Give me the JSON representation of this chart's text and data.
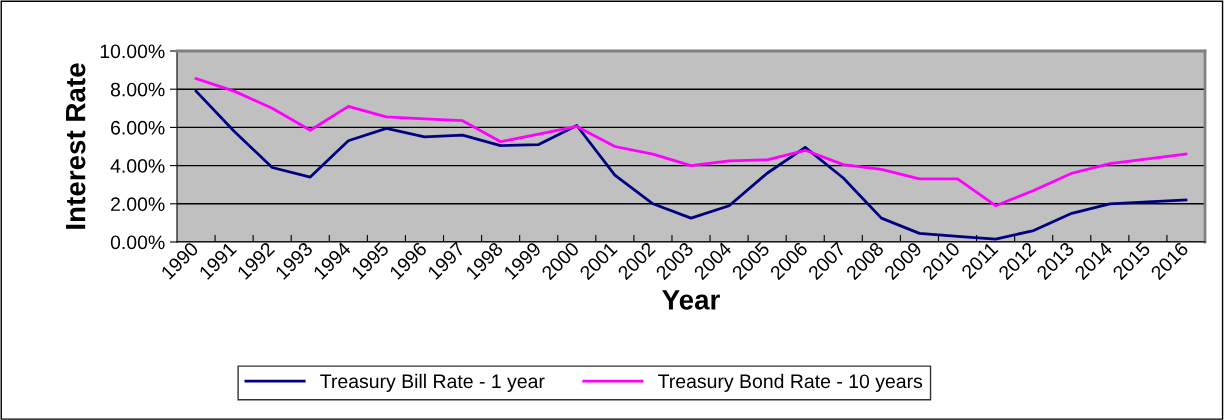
{
  "chart_data": {
    "type": "line",
    "xlabel": "Year",
    "ylabel": "Interest Rate",
    "categories": [
      "1990",
      "1991",
      "1992",
      "1993",
      "1994",
      "1995",
      "1996",
      "1997",
      "1998",
      "1999",
      "2000",
      "2001",
      "2002",
      "2003",
      "2004",
      "2005",
      "2006",
      "2007",
      "2008",
      "2009",
      "2010",
      "2011",
      "2012",
      "2013",
      "2014",
      "2015",
      "2016"
    ],
    "series": [
      {
        "name": "Treasury Bill Rate - 1 year",
        "color": "#000080",
        "values": [
          7.9,
          5.8,
          3.9,
          3.4,
          5.3,
          5.95,
          5.5,
          5.6,
          5.05,
          5.1,
          6.1,
          3.5,
          2.0,
          1.25,
          1.9,
          3.6,
          4.95,
          3.35,
          1.25,
          0.45,
          0.3,
          0.15,
          0.6,
          1.5,
          2.0,
          2.1,
          2.2
        ]
      },
      {
        "name": "Treasury Bond Rate - 10 years",
        "color": "#ff00ff",
        "values": [
          8.55,
          7.9,
          7.0,
          5.85,
          7.1,
          6.55,
          6.45,
          6.35,
          5.25,
          5.65,
          6.05,
          5.0,
          4.6,
          4.0,
          4.25,
          4.3,
          4.8,
          4.05,
          3.8,
          3.3,
          3.3,
          1.9,
          2.7,
          3.6,
          4.1,
          4.35,
          4.6
        ]
      }
    ],
    "ylim": [
      0,
      10
    ],
    "yticks": [
      {
        "value": 0,
        "label": "0.00%"
      },
      {
        "value": 2,
        "label": "2.00%"
      },
      {
        "value": 4,
        "label": "4.00%"
      },
      {
        "value": 6,
        "label": "6.00%"
      },
      {
        "value": 8,
        "label": "8.00%"
      },
      {
        "value": 10,
        "label": "10.00%"
      }
    ],
    "grid": "y",
    "legend": "bottom",
    "marker": "none",
    "line_style": "solid"
  }
}
